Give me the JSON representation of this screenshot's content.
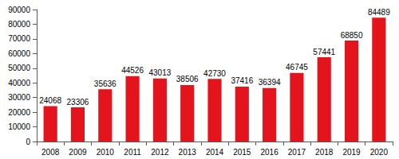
{
  "chart_data": {
    "type": "bar",
    "categories": [
      "2008",
      "2009",
      "2010",
      "2011",
      "2012",
      "2013",
      "2014",
      "2015",
      "2016",
      "2017",
      "2018",
      "2019",
      "2020"
    ],
    "values": [
      24068,
      23306,
      35636,
      44526,
      43013,
      38506,
      42730,
      37416,
      36394,
      46745,
      57441,
      68850,
      84489
    ],
    "color": "#e3141b",
    "ylim": [
      0,
      90000
    ],
    "yticks": [
      0,
      10000,
      20000,
      30000,
      40000,
      50000,
      60000,
      70000,
      80000,
      90000
    ],
    "grid": false,
    "data_labels": true
  }
}
